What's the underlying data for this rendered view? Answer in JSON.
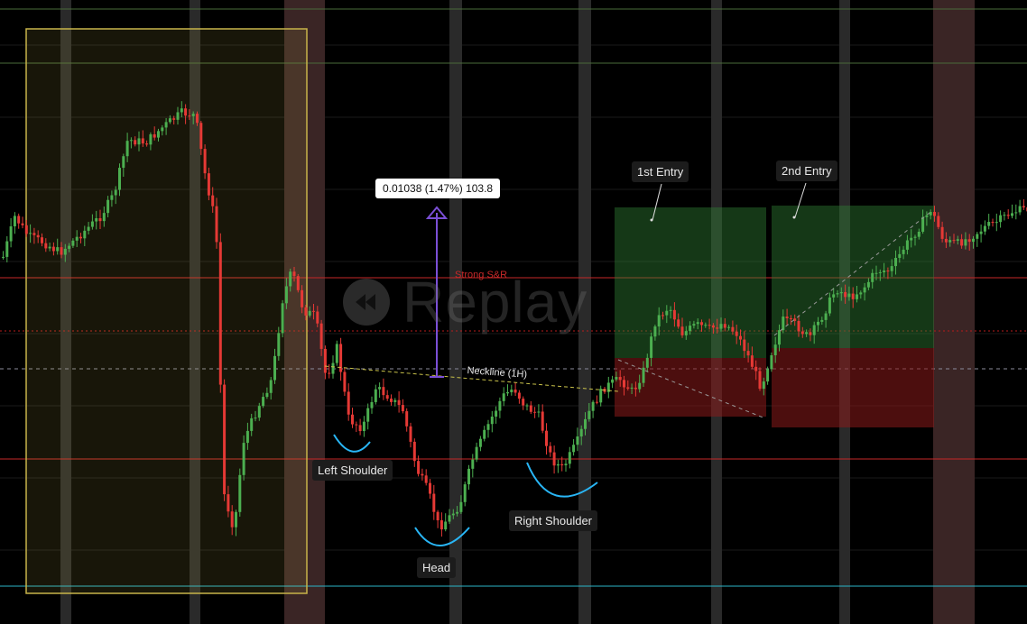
{
  "watermark": {
    "text": "Replay",
    "icon": "rewind-icon"
  },
  "measure_tooltip": {
    "text": "0.01038 (1.47%) 103.8"
  },
  "annotations": {
    "strong_sr": "Strong S&R",
    "neckline": "Neckline (1H)",
    "left_shoulder": "Left Shoulder",
    "head": "Head",
    "right_shoulder": "Right Shoulder",
    "entry_1": "1st Entry",
    "entry_2": "2nd Entry"
  },
  "colors": {
    "background": "#000000",
    "bull": "#26a69a",
    "bull_candle": "#4caf50",
    "bear_candle": "#e53935",
    "highlight_box": "#c8b44a",
    "measure_arrow": "#7b4fd6",
    "strong_sr_line": "#c62828",
    "neckline": "#c9c24a",
    "cyan_curve": "#29b6f6",
    "profit_zone": "#2e7d32",
    "loss_zone": "#8b1a1a",
    "bottom_line": "#2bb5c9"
  }
}
